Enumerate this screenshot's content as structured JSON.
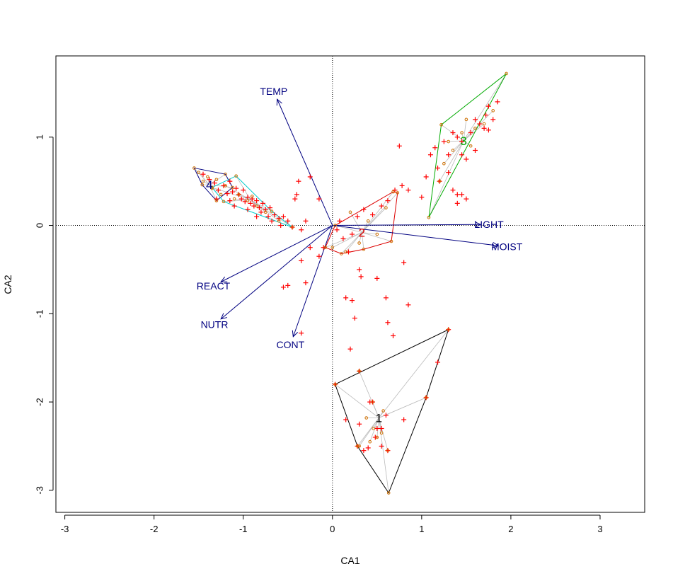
{
  "chart_data": {
    "type": "scatter",
    "title": "",
    "xlabel": "CA1",
    "ylabel": "CA2",
    "xlim": [
      -3.1,
      3.5
    ],
    "ylim": [
      -3.25,
      1.92
    ],
    "x_ticks": [
      -3,
      -2,
      -1,
      0,
      1,
      2,
      3
    ],
    "y_ticks": [
      -3,
      -2,
      -1,
      0,
      1
    ],
    "x_tick_labels": [
      "-3",
      "-2",
      "-1",
      "0",
      "1",
      "2",
      "3"
    ],
    "y_tick_labels": [
      "-3",
      "-2",
      "-1",
      "0",
      "1"
    ],
    "reference_lines": {
      "x": 0,
      "y": 0,
      "style": "dotted"
    },
    "colors": {
      "points": "#ff0000",
      "arrows": "#000080",
      "spider": "#bbbbbb",
      "group_1": "#000000",
      "group_2": "#dd0000",
      "group_3": "#00aa00",
      "group_4": "#000080",
      "group_4b": "#00cccc"
    },
    "arrows": [
      {
        "label": "TEMP",
        "x": -0.62,
        "y": 1.43
      },
      {
        "label": "LIGHT",
        "x": 1.66,
        "y": 0.01
      },
      {
        "label": "MOIST",
        "x": 1.86,
        "y": -0.23
      },
      {
        "label": "REACT",
        "x": -1.25,
        "y": -0.64
      },
      {
        "label": "NUTR",
        "x": -1.25,
        "y": -1.06
      },
      {
        "label": "CONT",
        "x": -0.44,
        "y": -1.26
      }
    ],
    "groups": [
      {
        "label": "1",
        "color": "#000000",
        "centroid": [
          0.52,
          -2.18
        ],
        "hull": [
          [
            0.03,
            -1.8
          ],
          [
            1.3,
            -1.18
          ],
          [
            1.05,
            -1.95
          ],
          [
            0.63,
            -3.03
          ],
          [
            0.28,
            -2.5
          ]
        ],
        "members": [
          [
            0.3,
            -1.65
          ],
          [
            0.38,
            -2.18
          ],
          [
            0.45,
            -2.0
          ],
          [
            0.62,
            -2.55
          ],
          [
            1.05,
            -1.95
          ],
          [
            0.55,
            -2.35
          ],
          [
            0.5,
            -2.4
          ],
          [
            0.42,
            -2.45
          ],
          [
            0.3,
            -2.5
          ],
          [
            0.46,
            -2.3
          ],
          [
            0.57,
            -2.1
          ]
        ]
      },
      {
        "label": "2",
        "color": "#dd0000",
        "centroid": [
          0.33,
          -0.08
        ],
        "hull": [
          [
            0.03,
            0.0
          ],
          [
            0.68,
            0.38
          ],
          [
            0.73,
            0.37
          ],
          [
            0.66,
            -0.18
          ],
          [
            0.35,
            -0.27
          ],
          [
            0.1,
            -0.32
          ],
          [
            -0.08,
            -0.25
          ]
        ],
        "members": [
          [
            0.2,
            0.15
          ],
          [
            0.3,
            -0.2
          ],
          [
            0.5,
            -0.1
          ],
          [
            0.6,
            0.2
          ],
          [
            0.4,
            0.05
          ],
          [
            0.15,
            -0.3
          ],
          [
            0.0,
            -0.25
          ]
        ]
      },
      {
        "label": "3",
        "color": "#00aa00",
        "centroid": [
          1.47,
          0.96
        ],
        "hull": [
          [
            1.22,
            1.14
          ],
          [
            1.95,
            1.72
          ],
          [
            1.08,
            0.09
          ]
        ],
        "members": [
          [
            1.5,
            1.2
          ],
          [
            1.6,
            1.1
          ],
          [
            1.7,
            1.15
          ],
          [
            1.3,
            0.95
          ],
          [
            1.35,
            0.85
          ],
          [
            1.25,
            0.7
          ],
          [
            1.45,
            1.05
          ],
          [
            1.8,
            1.3
          ],
          [
            1.55,
            0.9
          ],
          [
            1.2,
            0.5
          ]
        ]
      },
      {
        "label": "4",
        "color": "#000080",
        "centroid": [
          -1.38,
          0.46
        ],
        "hull": [
          [
            -1.55,
            0.65
          ],
          [
            -1.2,
            0.58
          ],
          [
            -1.12,
            0.43
          ],
          [
            -1.3,
            0.28
          ],
          [
            -1.46,
            0.46
          ]
        ],
        "members": [
          [
            -1.5,
            0.6
          ],
          [
            -1.4,
            0.55
          ],
          [
            -1.3,
            0.52
          ],
          [
            -1.35,
            0.42
          ],
          [
            -1.25,
            0.35
          ],
          [
            -1.45,
            0.5
          ]
        ]
      },
      {
        "label": "",
        "color": "#00cccc",
        "centroid": [
          -0.92,
          0.29
        ],
        "hull": [
          [
            -1.35,
            0.43
          ],
          [
            -1.08,
            0.56
          ],
          [
            -0.68,
            0.16
          ],
          [
            -0.45,
            -0.02
          ],
          [
            -1.22,
            0.27
          ]
        ],
        "members": [
          [
            -1.2,
            0.45
          ],
          [
            -1.05,
            0.35
          ],
          [
            -0.95,
            0.28
          ],
          [
            -0.85,
            0.22
          ],
          [
            -0.75,
            0.15
          ],
          [
            -0.6,
            0.05
          ],
          [
            -1.1,
            0.3
          ],
          [
            -0.9,
            0.33
          ]
        ]
      }
    ],
    "cross_points": [
      [
        -1.45,
        0.58
      ],
      [
        -1.38,
        0.52
      ],
      [
        -1.32,
        0.48
      ],
      [
        -1.28,
        0.4
      ],
      [
        -1.22,
        0.45
      ],
      [
        -1.18,
        0.36
      ],
      [
        -1.15,
        0.5
      ],
      [
        -1.12,
        0.38
      ],
      [
        -1.08,
        0.42
      ],
      [
        -1.05,
        0.35
      ],
      [
        -1.02,
        0.3
      ],
      [
        -1.0,
        0.4
      ],
      [
        -0.98,
        0.27
      ],
      [
        -0.95,
        0.32
      ],
      [
        -0.92,
        0.25
      ],
      [
        -0.9,
        0.3
      ],
      [
        -0.88,
        0.22
      ],
      [
        -0.85,
        0.28
      ],
      [
        -0.82,
        0.2
      ],
      [
        -0.8,
        0.15
      ],
      [
        -0.78,
        0.25
      ],
      [
        -0.75,
        0.18
      ],
      [
        -0.72,
        0.1
      ],
      [
        -0.7,
        0.2
      ],
      [
        -0.68,
        0.05
      ],
      [
        -0.65,
        0.12
      ],
      [
        -0.6,
        0.08
      ],
      [
        -0.58,
        0.0
      ],
      [
        -0.55,
        0.1
      ],
      [
        -0.5,
        0.05
      ],
      [
        -0.45,
        -0.02
      ],
      [
        -0.42,
        0.3
      ],
      [
        -0.4,
        0.35
      ],
      [
        -0.38,
        0.5
      ],
      [
        -0.25,
        0.55
      ],
      [
        -0.15,
        0.3
      ],
      [
        -0.3,
        0.05
      ],
      [
        -0.35,
        -0.05
      ],
      [
        -1.3,
        0.3
      ],
      [
        -1.15,
        0.28
      ],
      [
        -0.95,
        0.18
      ],
      [
        -0.85,
        0.1
      ],
      [
        -1.1,
        0.22
      ],
      [
        0.08,
        0.05
      ],
      [
        0.05,
        -0.05
      ],
      [
        0.12,
        -0.15
      ],
      [
        0.18,
        -0.3
      ],
      [
        0.22,
        -0.1
      ],
      [
        0.28,
        0.1
      ],
      [
        0.35,
        0.18
      ],
      [
        0.45,
        0.12
      ],
      [
        0.55,
        0.22
      ],
      [
        0.62,
        0.28
      ],
      [
        0.7,
        0.4
      ],
      [
        0.78,
        0.45
      ],
      [
        0.85,
        0.4
      ],
      [
        0.75,
        0.9
      ],
      [
        -0.1,
        -0.25
      ],
      [
        -0.15,
        -0.35
      ],
      [
        -0.25,
        -0.25
      ],
      [
        -0.35,
        -0.4
      ],
      [
        -0.3,
        -0.65
      ],
      [
        -0.5,
        -0.68
      ],
      [
        -0.55,
        -0.7
      ],
      [
        -0.35,
        -1.22
      ],
      [
        0.3,
        -0.5
      ],
      [
        0.32,
        -0.58
      ],
      [
        0.5,
        -0.6
      ],
      [
        0.6,
        -0.82
      ],
      [
        0.8,
        -0.42
      ],
      [
        0.85,
        -0.9
      ],
      [
        0.62,
        -1.1
      ],
      [
        0.68,
        -1.25
      ],
      [
        0.22,
        -0.85
      ],
      [
        0.25,
        -1.05
      ],
      [
        0.15,
        -0.82
      ],
      [
        0.2,
        -1.4
      ],
      [
        0.03,
        -1.8
      ],
      [
        0.3,
        -1.65
      ],
      [
        0.42,
        -2.0
      ],
      [
        0.45,
        -2.0
      ],
      [
        0.55,
        -2.3
      ],
      [
        0.6,
        -2.15
      ],
      [
        0.5,
        -2.3
      ],
      [
        0.48,
        -2.4
      ],
      [
        0.4,
        -2.52
      ],
      [
        0.35,
        -2.55
      ],
      [
        0.28,
        -2.5
      ],
      [
        0.55,
        -2.5
      ],
      [
        0.62,
        -2.55
      ],
      [
        0.8,
        -2.2
      ],
      [
        1.05,
        -1.95
      ],
      [
        1.3,
        -1.18
      ],
      [
        1.18,
        -1.55
      ],
      [
        0.15,
        -2.2
      ],
      [
        0.3,
        -2.25
      ],
      [
        1.05,
        0.55
      ],
      [
        1.0,
        0.32
      ],
      [
        1.1,
        0.8
      ],
      [
        1.15,
        0.88
      ],
      [
        1.18,
        0.65
      ],
      [
        1.2,
        0.5
      ],
      [
        1.3,
        0.6
      ],
      [
        1.35,
        0.4
      ],
      [
        1.4,
        0.35
      ],
      [
        1.45,
        0.35
      ],
      [
        1.4,
        0.25
      ],
      [
        1.5,
        0.3
      ],
      [
        1.3,
        0.8
      ],
      [
        1.35,
        1.05
      ],
      [
        1.4,
        1.0
      ],
      [
        1.45,
        0.95
      ],
      [
        1.55,
        1.05
      ],
      [
        1.6,
        1.2
      ],
      [
        1.65,
        1.15
      ],
      [
        1.7,
        1.1
      ],
      [
        1.72,
        1.25
      ],
      [
        1.75,
        1.08
      ],
      [
        1.6,
        0.85
      ],
      [
        1.5,
        0.75
      ],
      [
        1.45,
        0.8
      ],
      [
        1.25,
        0.95
      ],
      [
        1.8,
        1.2
      ],
      [
        1.85,
        1.4
      ],
      [
        1.75,
        1.35
      ]
    ],
    "legend": "none"
  }
}
